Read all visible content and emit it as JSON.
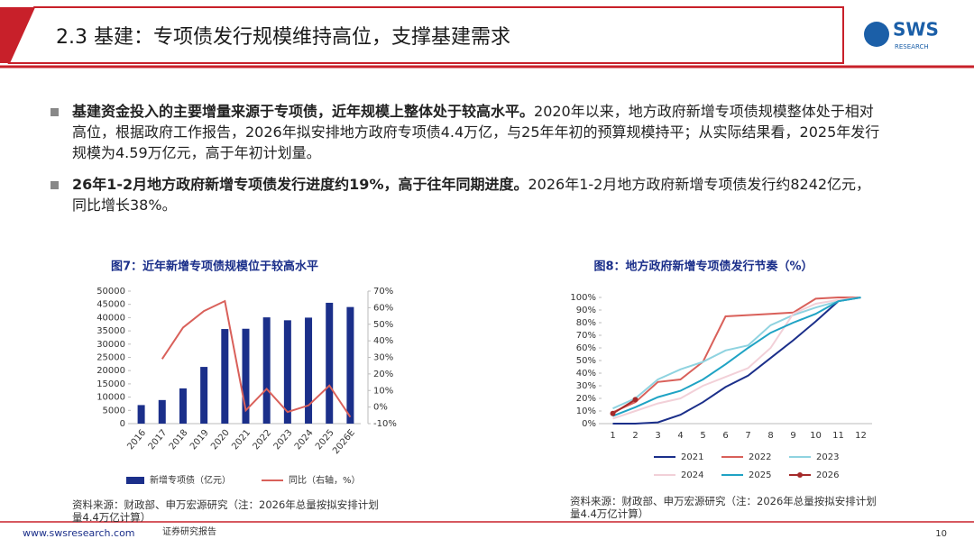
{
  "header": {
    "title": "2.3 基建：专项债发行规模维持高位，支撑基建需求",
    "logo": "SWS",
    "logo_sub": "RESEARCH"
  },
  "bullets": [
    {
      "bold": "基建资金投入的主要增量来源于专项债，近年规模上整体处于较高水平。",
      "text": "2020年以来，地方政府新增专项债规模整体处于相对高位，根据政府工作报告，2026年拟安排地方政府专项债4.4万亿，与25年年初的预算规模持平；从实际结果看，2025年发行规模为4.59万亿元，高于年初计划量。"
    },
    {
      "bold": "26年1-2月地方政府新增专项债发行进度约19%，高于往年同期进度。",
      "text": "2026年1-2月地方政府新增专项债发行约8242亿元，同比增长38%。"
    }
  ],
  "chart_data": [
    {
      "type": "bar",
      "title": "图7：近年新增专项债规模位于较高水平",
      "categories": [
        "2016",
        "2017",
        "2018",
        "2019",
        "2020",
        "2021",
        "2022",
        "2023",
        "2024",
        "2025",
        "2026E"
      ],
      "series": [
        {
          "name": "新增专项债（亿元）",
          "type": "bar",
          "color": "#1b2f8a",
          "values": [
            7000,
            8900,
            13300,
            21400,
            35700,
            35800,
            40100,
            39000,
            40000,
            45600,
            44000
          ]
        },
        {
          "name": "同比（右轴，%）",
          "type": "line",
          "axis": "y2",
          "color": "#d9605a",
          "values": [
            null,
            29,
            48,
            58,
            64,
            -2,
            11,
            -3,
            1,
            13,
            -6
          ]
        }
      ],
      "ylim": [
        0,
        50000
      ],
      "yticks": [
        0,
        5000,
        10000,
        15000,
        20000,
        25000,
        30000,
        35000,
        40000,
        45000,
        50000
      ],
      "y2lim": [
        -10,
        70
      ],
      "y2ticks": [
        {
          "value": -10,
          "label": "-10%"
        },
        {
          "value": 0,
          "label": "0%"
        },
        {
          "value": 10,
          "label": "10%"
        },
        {
          "value": 20,
          "label": "20%"
        },
        {
          "value": 30,
          "label": "30%"
        },
        {
          "value": 40,
          "label": "40%"
        },
        {
          "value": 50,
          "label": "50%"
        },
        {
          "value": 60,
          "label": "60%"
        },
        {
          "value": 70,
          "label": "70%"
        }
      ],
      "source": "资料来源：财政部、申万宏源研究（注：2026年总量按拟安排计划量4.4万亿计算）"
    },
    {
      "type": "line",
      "title": "图8：地方政府新增专项债发行节奏（%）",
      "categories": [
        "1",
        "2",
        "3",
        "4",
        "5",
        "6",
        "7",
        "8",
        "9",
        "10",
        "11",
        "12"
      ],
      "series": [
        {
          "name": "2021",
          "color": "#1b2f8a",
          "values": [
            0,
            0,
            1,
            7,
            17,
            29,
            38,
            52,
            66,
            81,
            97,
            100
          ]
        },
        {
          "name": "2022",
          "color": "#d9605a",
          "values": [
            9,
            17,
            33,
            35,
            49,
            85,
            86,
            87,
            88,
            99,
            100,
            100
          ]
        },
        {
          "name": "2023",
          "color": "#8fd3e0",
          "values": [
            12,
            20,
            35,
            43,
            49,
            58,
            62,
            78,
            86,
            92,
            97,
            100
          ]
        },
        {
          "name": "2024",
          "color": "#f2d0d8",
          "values": [
            4,
            10,
            16,
            20,
            30,
            37,
            44,
            60,
            87,
            95,
            98,
            100
          ]
        },
        {
          "name": "2025",
          "color": "#1fa3c4",
          "values": [
            6,
            13,
            21,
            26,
            35,
            47,
            60,
            72,
            80,
            87,
            97,
            100
          ]
        },
        {
          "name": "2026",
          "color": "#a52a2a",
          "markers": true,
          "values": [
            8,
            19,
            null,
            null,
            null,
            null,
            null,
            null,
            null,
            null,
            null,
            null
          ]
        }
      ],
      "ylim": [
        0,
        100
      ],
      "yticks": [
        {
          "value": 0,
          "label": "0%"
        },
        {
          "value": 10,
          "label": "10%"
        },
        {
          "value": 20,
          "label": "20%"
        },
        {
          "value": 30,
          "label": "30%"
        },
        {
          "value": 40,
          "label": "40%"
        },
        {
          "value": 50,
          "label": "50%"
        },
        {
          "value": 60,
          "label": "60%"
        },
        {
          "value": 70,
          "label": "70%"
        },
        {
          "value": 80,
          "label": "80%"
        },
        {
          "value": 90,
          "label": "90%"
        },
        {
          "value": 100,
          "label": "100%"
        }
      ],
      "source": "资料来源：财政部、申万宏源研究（注：2026年总量按拟安排计划量4.4万亿计算）"
    }
  ],
  "footer": {
    "site": "www.swsresearch.com",
    "label": "证券研究报告",
    "page": "10"
  }
}
